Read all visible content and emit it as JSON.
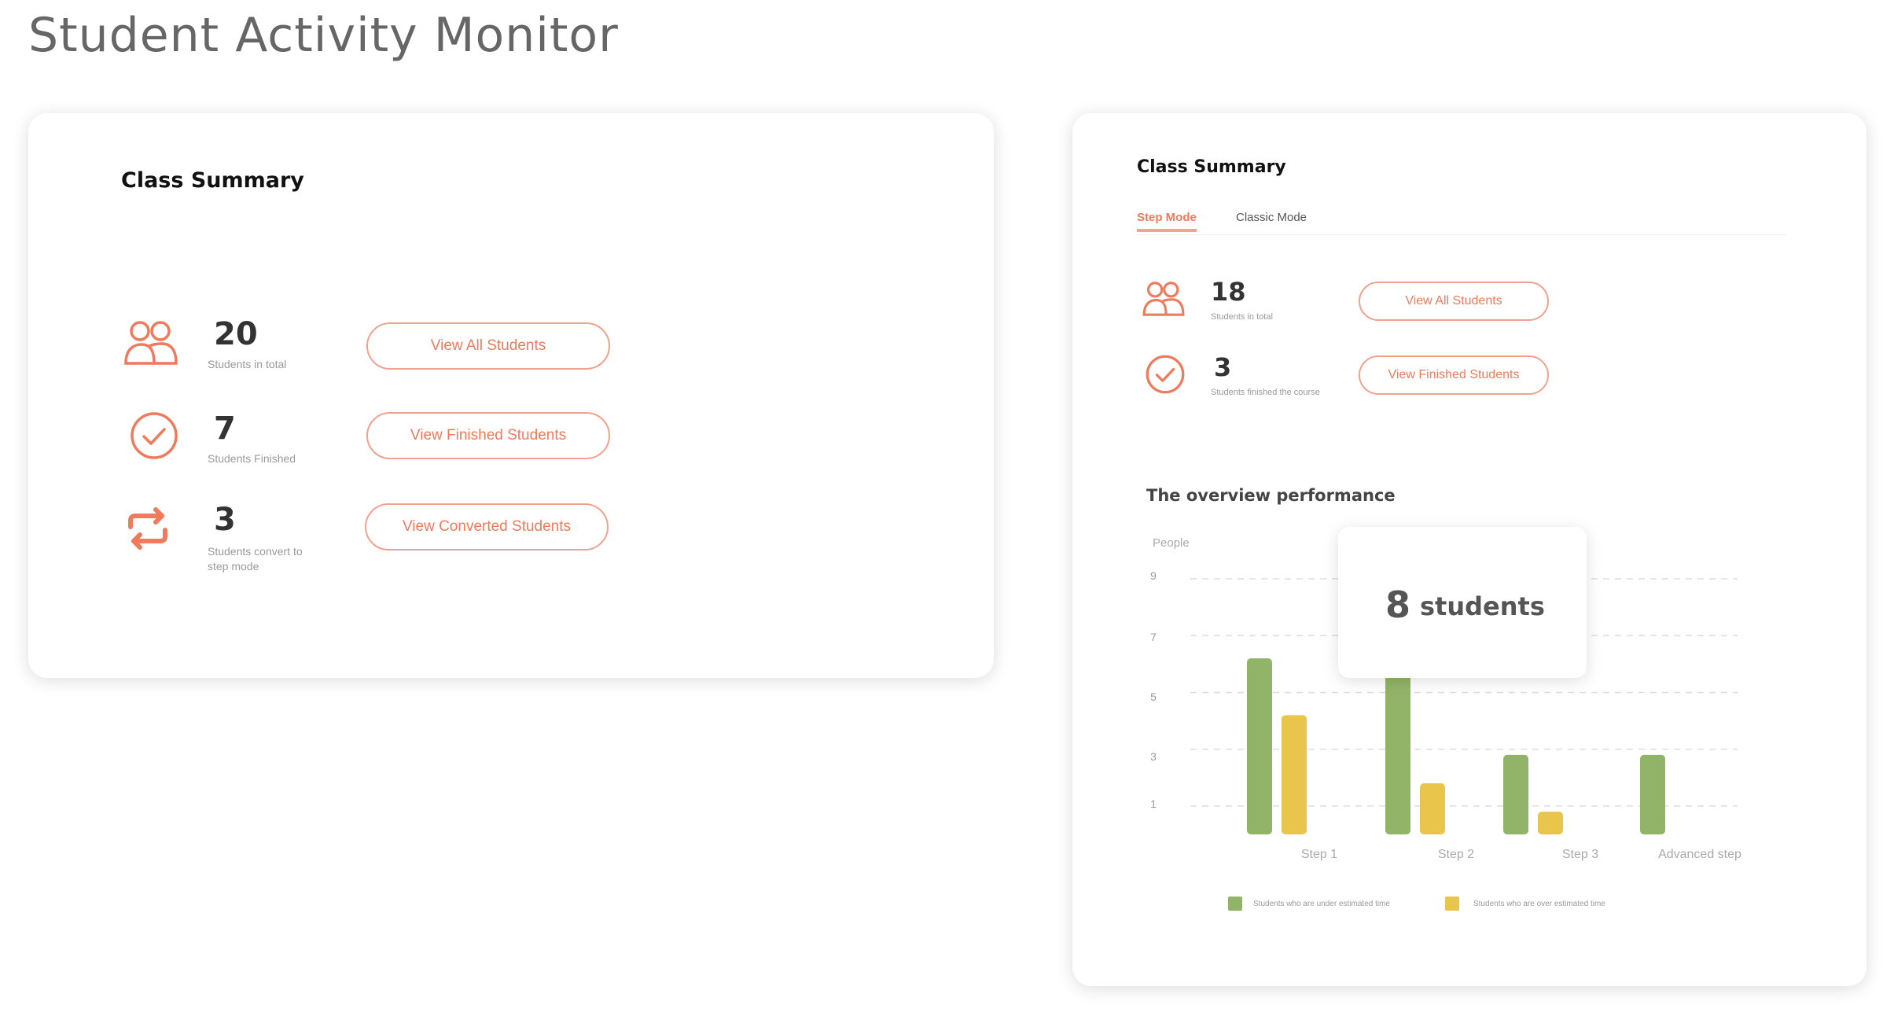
{
  "page": {
    "title": "Student Activity Monitor"
  },
  "colors": {
    "accent": "#ef7a5c",
    "accent_border": "#f1a28e",
    "green": "#92b468",
    "yellow": "#e9c64b"
  },
  "left_card": {
    "title": "Class Summary",
    "stats": [
      {
        "icon": "people-icon",
        "value": "20",
        "caption": "Students in total",
        "button": "View All Students"
      },
      {
        "icon": "check-circle-icon",
        "value": "7",
        "caption": "Students Finished",
        "button": "View Finished Students"
      },
      {
        "icon": "convert-arrows-icon",
        "value": "3",
        "caption": "Students convert to step mode",
        "button": "View Converted Students"
      }
    ]
  },
  "right_card": {
    "title": "Class Summary",
    "tabs": [
      {
        "label": "Step Mode",
        "active": true
      },
      {
        "label": "Classic Mode",
        "active": false
      }
    ],
    "stats": [
      {
        "icon": "people-icon",
        "value": "18",
        "caption": "Students in total",
        "button": "View All Students"
      },
      {
        "icon": "check-circle-icon",
        "value": "3",
        "caption": "Students finished the course",
        "button": "View Finished Students"
      }
    ],
    "section_title": "The overview performance",
    "tooltip": {
      "value": "8",
      "unit": "students"
    }
  },
  "chart_data": {
    "type": "bar",
    "ylabel": "People",
    "yticks": [
      "9",
      "7",
      "5",
      "3",
      "1"
    ],
    "ylim": [
      0,
      9
    ],
    "categories": [
      "Step 1",
      "Step 2",
      "Step 3",
      "Advanced step"
    ],
    "series": [
      {
        "name": "Students who are under estimated time",
        "values": [
          6.2,
          8,
          2.8,
          2.8
        ],
        "color": "#92b468"
      },
      {
        "name": "Students who are over estimated time",
        "values": [
          4.2,
          1.8,
          0.8,
          null
        ],
        "color": "#e9c64b"
      }
    ],
    "grid": true,
    "legend": "bottom"
  }
}
